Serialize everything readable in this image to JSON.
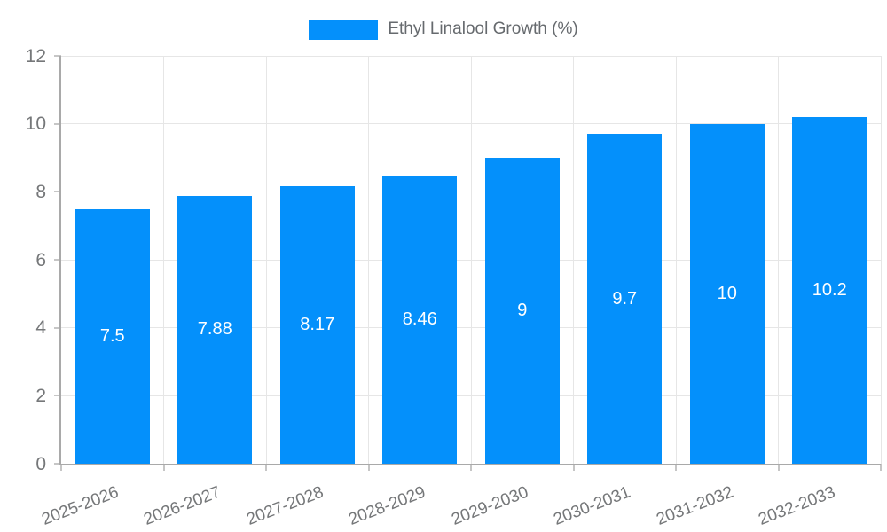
{
  "legend": {
    "label": "Ethyl Linalool Growth (%)"
  },
  "colors": {
    "bar": "#0490FB",
    "grid": "#e6e6e6",
    "axis": "#a9a9a9",
    "tick": "#c6c6c6",
    "axis_text": "#757779",
    "legend_text": "#666a6e",
    "value_text": "#ffffff",
    "background": "#ffffff"
  },
  "chart_data": {
    "type": "bar",
    "title": "",
    "xlabel": "",
    "ylabel": "",
    "series_name": "Ethyl Linalool Growth (%)",
    "categories": [
      "2025-2026",
      "2026-2027",
      "2027-2028",
      "2028-2029",
      "2029-2030",
      "2030-2031",
      "2031-2032",
      "2032-2033"
    ],
    "values": [
      7.5,
      7.88,
      8.17,
      8.46,
      9,
      9.7,
      10,
      10.2
    ],
    "value_labels": [
      "7.5",
      "7.88",
      "8.17",
      "8.46",
      "9",
      "9.7",
      "10",
      "10.2"
    ],
    "ylim": [
      0,
      12
    ],
    "yticks": [
      0,
      2,
      4,
      6,
      8,
      10,
      12
    ],
    "grid": true,
    "legend_position": "top-center",
    "value_label_position": "bar-center",
    "x_label_rotation_deg": -21
  }
}
